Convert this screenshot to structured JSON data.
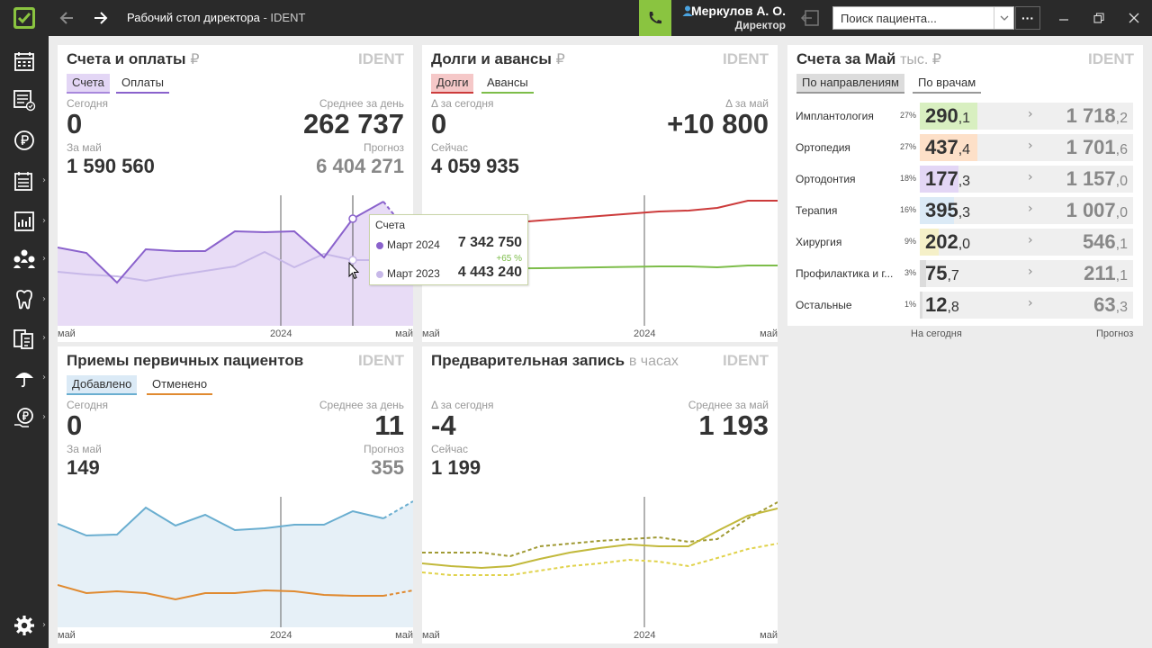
{
  "titlebar": {
    "title": "Рабочий стол директора",
    "title_suffix": " - IDENT",
    "user_name": "Меркулов А. О.",
    "user_role": "Директор",
    "search_placeholder": "Поиск пациента...",
    "more_label": "···"
  },
  "sidebar": {
    "items": [
      "calendar-icon",
      "schedule-list-icon",
      "payments-icon",
      "registry-icon",
      "reports-icon",
      "patients-icon",
      "tooth-icon",
      "lab-icon",
      "insurance-icon",
      "loan-icon"
    ],
    "settings": "gear-icon"
  },
  "panel1": {
    "title": "Счета и оплаты",
    "currency": "₽",
    "brand": "IDENT",
    "tabs": [
      "Счета",
      "Оплаты"
    ],
    "today_label": "Сегодня",
    "today_value": "0",
    "avg_label": "Среднее за день",
    "avg_value": "262 737",
    "month_label": "За май",
    "month_value": "1 590 560",
    "forecast_label": "Прогноз",
    "forecast_value": "6 404 271",
    "axis": [
      "май",
      "2024",
      "май"
    ]
  },
  "panel2": {
    "title": "Долги и авансы",
    "currency": "₽",
    "brand": "IDENT",
    "tabs": [
      "Долги",
      "Авансы"
    ],
    "delta_today_label": "Δ за сегодня",
    "delta_today_value": "0",
    "delta_month_label": "Δ за май",
    "delta_month_value": "+10 800",
    "now_label": "Сейчас",
    "now_value": "4 059 935",
    "axis": [
      "май",
      "2024",
      "май"
    ]
  },
  "panel3": {
    "title": "Счета за Май",
    "unit": "тыс. ₽",
    "brand": "IDENT",
    "tabs": [
      "По направлениям",
      "По врачам"
    ],
    "rows": [
      {
        "name": "Имплантология",
        "pct": "27%",
        "today_int": "290",
        "today_dec": ",1",
        "month_int": "1 718",
        "month_dec": ",2",
        "color": "#d8efc0",
        "fill": 0.27
      },
      {
        "name": "Ортопедия",
        "pct": "27%",
        "today_int": "437",
        "today_dec": ",4",
        "month_int": "1 701",
        "month_dec": ",6",
        "color": "#fde0c8",
        "fill": 0.27
      },
      {
        "name": "Ортодонтия",
        "pct": "18%",
        "today_int": "177",
        "today_dec": ",3",
        "month_int": "1 157",
        "month_dec": ",0",
        "color": "#e3d6f5",
        "fill": 0.18
      },
      {
        "name": "Терапия",
        "pct": "16%",
        "today_int": "395",
        "today_dec": ",3",
        "month_int": "1 007",
        "month_dec": ",0",
        "color": "#dbeaf6",
        "fill": 0.16
      },
      {
        "name": "Хирургия",
        "pct": "9%",
        "today_int": "202",
        "today_dec": ",0",
        "month_int": "546",
        "month_dec": ",1",
        "color": "#f5f0c8",
        "fill": 0.09
      },
      {
        "name": "Профилактика и г...",
        "pct": "3%",
        "today_int": "75",
        "today_dec": ",7",
        "month_int": "211",
        "month_dec": ",1",
        "color": "#dcdcdc",
        "fill": 0.03
      },
      {
        "name": "Остальные",
        "pct": "1%",
        "today_int": "12",
        "today_dec": ",8",
        "month_int": "63",
        "month_dec": ",3",
        "color": "#dcdcdc",
        "fill": 0.01
      }
    ],
    "footer_left": "На сегодня",
    "footer_right": "Прогноз"
  },
  "panel4": {
    "title": "Приемы первичных пациентов",
    "brand": "IDENT",
    "tabs": [
      "Добавлено",
      "Отменено"
    ],
    "today_label": "Сегодня",
    "today_value": "0",
    "avg_label": "Среднее за день",
    "avg_value": "11",
    "month_label": "За май",
    "month_value": "149",
    "forecast_label": "Прогноз",
    "forecast_value": "355",
    "axis": [
      "май",
      "2024",
      "май"
    ]
  },
  "panel5": {
    "title": "Предварительная запись",
    "unit": "в часах",
    "brand": "IDENT",
    "delta_today_label": "Δ за сегодня",
    "delta_today_value": "-4",
    "avg_label": "Среднее за май",
    "avg_value": "1 193",
    "now_label": "Сейчас",
    "now_value": "1 199",
    "axis": [
      "май",
      "2024",
      "май"
    ]
  },
  "tooltip": {
    "title": "Счета",
    "rows": [
      {
        "label": "Март 2024",
        "value": "7 342 750",
        "color": "#8a62cc"
      },
      {
        "label": "Март 2023",
        "value": "4 443 240",
        "color": "#c7b8e8"
      }
    ],
    "change": "+65 %"
  },
  "colors": {
    "accent": "#8ac440",
    "purple": "#8a62cc",
    "red": "#cc3b3b",
    "green": "#7dbd4a",
    "blue": "#6aaed0",
    "orange": "#e08a30",
    "olive": "#c2b93c"
  }
}
